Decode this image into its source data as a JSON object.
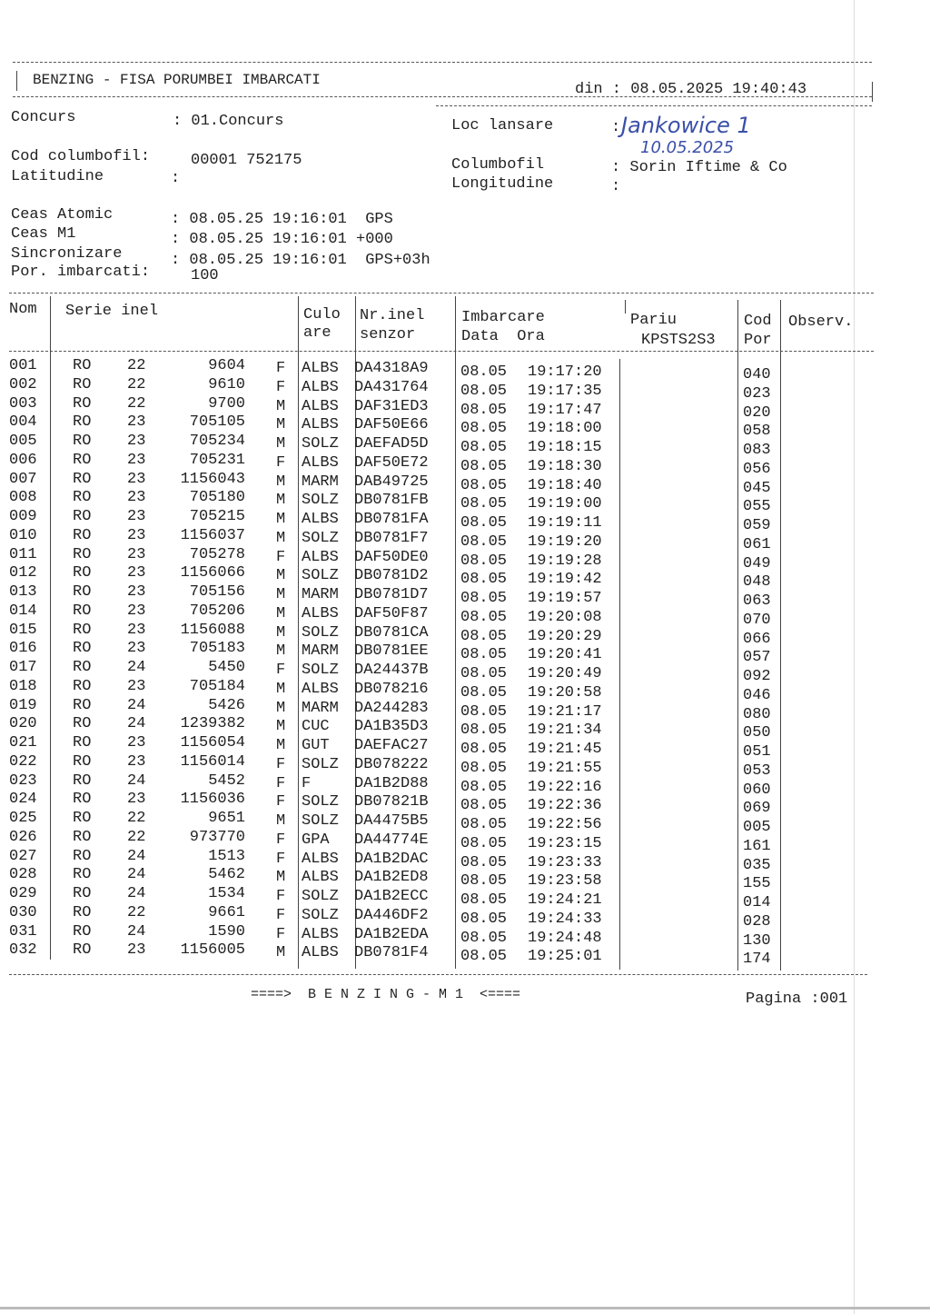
{
  "header": {
    "title": "BENZING - FISA PORUMBEI IMBARCATI",
    "date_label": "din : 08.05.2025 19:40:43"
  },
  "info": {
    "concurs_label": "Concurs",
    "concurs_value": ": 01.Concurs",
    "loc_lansare_label": "Loc lansare",
    "loc_lansare_colon": ":",
    "loc_lansare_handwritten": "Jankowice 1",
    "handwritten_date": "10.05.2025",
    "cod_label": "Cod columbofil:",
    "cod_value": "00001 752175",
    "columbofil_label": "Columbofil",
    "columbofil_value": ": Sorin Iftime & Co",
    "latitudine_label": "Latitudine",
    "latitudine_value": ":",
    "longitudine_label": "Longitudine",
    "longitudine_value": ":",
    "ceas_atomic_label": "Ceas Atomic",
    "ceas_atomic_value": ": 08.05.25 19:16:01  GPS",
    "ceas_m1_label": "Ceas M1",
    "ceas_m1_value": ": 08.05.25 19:16:01 +000",
    "sincronizare_label": "Sincronizare",
    "sincronizare_value": ": 08.05.25 19:16:01  GPS+03h",
    "por_label": "Por. imbarcati:",
    "por_value": "100"
  },
  "table": {
    "headers": {
      "nom": "Nom",
      "serie": "Serie inel",
      "culo1": "Culo",
      "culo2": "are",
      "nr1": "Nr.inel",
      "nr2": "senzor",
      "imb1": "Imbarcare",
      "imb2": "Data  Ora",
      "pariu1": "Pariu",
      "pariu2": "KPSTS2S3",
      "cod1": "Cod",
      "cod2": "Por",
      "obs": "Observ."
    },
    "rows": [
      [
        "001",
        "RO",
        "22",
        "9604",
        "F",
        "ALBS",
        "DA4318A9",
        "08.05",
        "19:17:20",
        "040"
      ],
      [
        "002",
        "RO",
        "22",
        "9610",
        "F",
        "ALBS",
        "DA431764",
        "08.05",
        "19:17:35",
        "023"
      ],
      [
        "003",
        "RO",
        "22",
        "9700",
        "M",
        "ALBS",
        "DAF31ED3",
        "08.05",
        "19:17:47",
        "020"
      ],
      [
        "004",
        "RO",
        "23",
        "705105",
        "M",
        "ALBS",
        "DAF50E66",
        "08.05",
        "19:18:00",
        "058"
      ],
      [
        "005",
        "RO",
        "23",
        "705234",
        "M",
        "SOLZ",
        "DAEFAD5D",
        "08.05",
        "19:18:15",
        "083"
      ],
      [
        "006",
        "RO",
        "23",
        "705231",
        "F",
        "ALBS",
        "DAF50E72",
        "08.05",
        "19:18:30",
        "056"
      ],
      [
        "007",
        "RO",
        "23",
        "1156043",
        "M",
        "MARM",
        "DAB49725",
        "08.05",
        "19:18:40",
        "045"
      ],
      [
        "008",
        "RO",
        "23",
        "705180",
        "M",
        "SOLZ",
        "DB0781FB",
        "08.05",
        "19:19:00",
        "055"
      ],
      [
        "009",
        "RO",
        "23",
        "705215",
        "M",
        "ALBS",
        "DB0781FA",
        "08.05",
        "19:19:11",
        "059"
      ],
      [
        "010",
        "RO",
        "23",
        "1156037",
        "M",
        "SOLZ",
        "DB0781F7",
        "08.05",
        "19:19:20",
        "061"
      ],
      [
        "011",
        "RO",
        "23",
        "705278",
        "F",
        "ALBS",
        "DAF50DE0",
        "08.05",
        "19:19:28",
        "049"
      ],
      [
        "012",
        "RO",
        "23",
        "1156066",
        "M",
        "SOLZ",
        "DB0781D2",
        "08.05",
        "19:19:42",
        "048"
      ],
      [
        "013",
        "RO",
        "23",
        "705156",
        "M",
        "MARM",
        "DB0781D7",
        "08.05",
        "19:19:57",
        "063"
      ],
      [
        "014",
        "RO",
        "23",
        "705206",
        "M",
        "ALBS",
        "DAF50F87",
        "08.05",
        "19:20:08",
        "070"
      ],
      [
        "015",
        "RO",
        "23",
        "1156088",
        "M",
        "SOLZ",
        "DB0781CA",
        "08.05",
        "19:20:29",
        "066"
      ],
      [
        "016",
        "RO",
        "23",
        "705183",
        "M",
        "MARM",
        "DB0781EE",
        "08.05",
        "19:20:41",
        "057"
      ],
      [
        "017",
        "RO",
        "24",
        "5450",
        "F",
        "SOLZ",
        "DA24437B",
        "08.05",
        "19:20:49",
        "092"
      ],
      [
        "018",
        "RO",
        "23",
        "705184",
        "M",
        "ALBS",
        "DB078216",
        "08.05",
        "19:20:58",
        "046"
      ],
      [
        "019",
        "RO",
        "24",
        "5426",
        "M",
        "MARM",
        "DA244283",
        "08.05",
        "19:21:17",
        "080"
      ],
      [
        "020",
        "RO",
        "24",
        "1239382",
        "M",
        "CUC",
        "DA1B35D3",
        "08.05",
        "19:21:34",
        "050"
      ],
      [
        "021",
        "RO",
        "23",
        "1156054",
        "M",
        "GUT",
        "DAEFAC27",
        "08.05",
        "19:21:45",
        "051"
      ],
      [
        "022",
        "RO",
        "23",
        "1156014",
        "F",
        "SOLZ",
        "DB078222",
        "08.05",
        "19:21:55",
        "053"
      ],
      [
        "023",
        "RO",
        "24",
        "5452",
        "F",
        "F",
        "DA1B2D88",
        "08.05",
        "19:22:16",
        "060"
      ],
      [
        "024",
        "RO",
        "23",
        "1156036",
        "F",
        "SOLZ",
        "DB07821B",
        "08.05",
        "19:22:36",
        "069"
      ],
      [
        "025",
        "RO",
        "22",
        "9651",
        "M",
        "SOLZ",
        "DA4475B5",
        "08.05",
        "19:22:56",
        "005"
      ],
      [
        "026",
        "RO",
        "22",
        "973770",
        "F",
        "GPA",
        "DA44774E",
        "08.05",
        "19:23:15",
        "161"
      ],
      [
        "027",
        "RO",
        "24",
        "1513",
        "F",
        "ALBS",
        "DA1B2DAC",
        "08.05",
        "19:23:33",
        "035"
      ],
      [
        "028",
        "RO",
        "24",
        "5462",
        "M",
        "ALBS",
        "DA1B2ED8",
        "08.05",
        "19:23:58",
        "155"
      ],
      [
        "029",
        "RO",
        "24",
        "1534",
        "F",
        "SOLZ",
        "DA1B2ECC",
        "08.05",
        "19:24:21",
        "014"
      ],
      [
        "030",
        "RO",
        "22",
        "9661",
        "F",
        "SOLZ",
        "DA446DF2",
        "08.05",
        "19:24:33",
        "028"
      ],
      [
        "031",
        "RO",
        "24",
        "1590",
        "F",
        "ALBS",
        "DA1B2EDA",
        "08.05",
        "19:24:48",
        "130"
      ],
      [
        "032",
        "RO",
        "23",
        "1156005",
        "M",
        "ALBS",
        "DB0781F4",
        "08.05",
        "19:25:01",
        "174"
      ]
    ]
  },
  "footer": {
    "center": "====>  B E N Z I N G - M 1  <====",
    "page": "Pagina :001"
  }
}
